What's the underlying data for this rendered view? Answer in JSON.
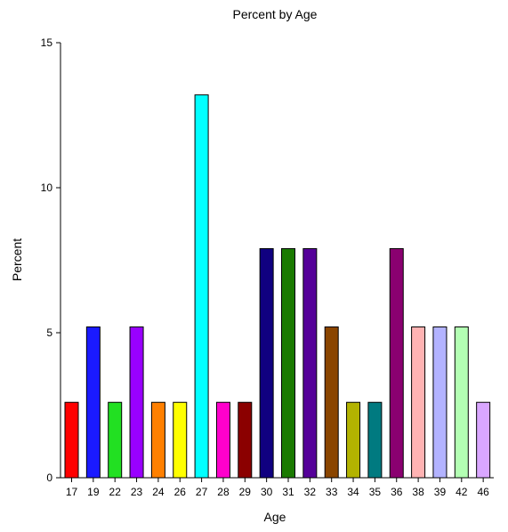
{
  "chart_data": {
    "type": "bar",
    "title": "Percent by Age",
    "xlabel": "Age",
    "ylabel": "Percent",
    "ylim": [
      0,
      15
    ],
    "yticks": [
      0,
      5,
      10,
      15
    ],
    "grid": false,
    "legend": "none",
    "categories": [
      "17",
      "19",
      "22",
      "23",
      "24",
      "26",
      "27",
      "28",
      "29",
      "30",
      "31",
      "32",
      "33",
      "34",
      "35",
      "36",
      "38",
      "39",
      "42",
      "46"
    ],
    "values": [
      2.6,
      5.2,
      2.6,
      5.2,
      2.6,
      2.6,
      13.2,
      2.6,
      2.6,
      7.9,
      7.9,
      7.9,
      5.2,
      2.6,
      2.6,
      7.9,
      5.2,
      5.2,
      5.2,
      2.6
    ],
    "colors": [
      "#ff0000",
      "#1a1aff",
      "#22e022",
      "#9900ff",
      "#ff8000",
      "#ffff00",
      "#00ffff",
      "#ff00cc",
      "#8b0000",
      "#100080",
      "#1a7a00",
      "#550099",
      "#8a4500",
      "#b3b300",
      "#007a80",
      "#8a0070",
      "#ffb3b3",
      "#b3b3ff",
      "#b3ffb3",
      "#d9a6ff"
    ]
  }
}
